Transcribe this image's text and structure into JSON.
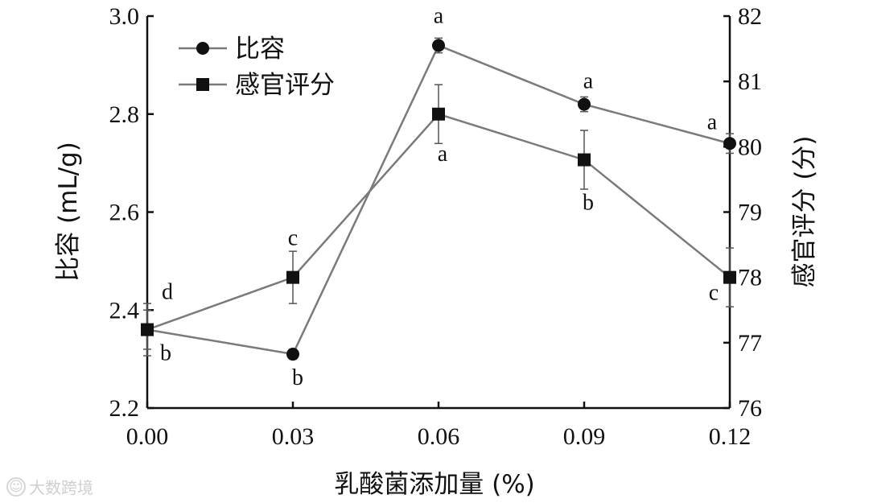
{
  "chart_data": {
    "type": "line",
    "x": [
      0.0,
      0.03,
      0.06,
      0.09,
      0.12
    ],
    "x_tick_labels": [
      "0.00",
      "0.03",
      "0.06",
      "0.09",
      "0.12"
    ],
    "xlabel": "乳酸菌添加量 (%)",
    "xlim": [
      0.0,
      0.12
    ],
    "ylabel_left": "比容 (mL/g)",
    "ylim_left": [
      2.2,
      3.0
    ],
    "yticks_left": [
      "2.2",
      "2.4",
      "2.6",
      "2.8",
      "3.0"
    ],
    "ylabel_right": "感官评分 (分)",
    "ylim_right": [
      76,
      82
    ],
    "yticks_right": [
      "76",
      "77",
      "78",
      "79",
      "80",
      "81",
      "82"
    ],
    "legend_position": "top-left",
    "grid": false,
    "series": [
      {
        "name": "比容",
        "marker": "circle",
        "axis": "left",
        "values": [
          2.36,
          2.31,
          2.94,
          2.82,
          2.74
        ],
        "errors": [
          0.04,
          0.01,
          0.015,
          0.015,
          0.02
        ],
        "labels": [
          "b",
          "b",
          "a",
          "a",
          "a"
        ]
      },
      {
        "name": "感官评分",
        "marker": "square",
        "axis": "right",
        "values": [
          77.2,
          78.0,
          80.5,
          79.8,
          78.0
        ],
        "errors": [
          0.4,
          0.4,
          0.45,
          0.45,
          0.45
        ],
        "labels": [
          "d",
          "c",
          "a",
          "b",
          "c"
        ]
      }
    ]
  },
  "watermark": {
    "logo": "☺",
    "text": "大数跨境"
  }
}
